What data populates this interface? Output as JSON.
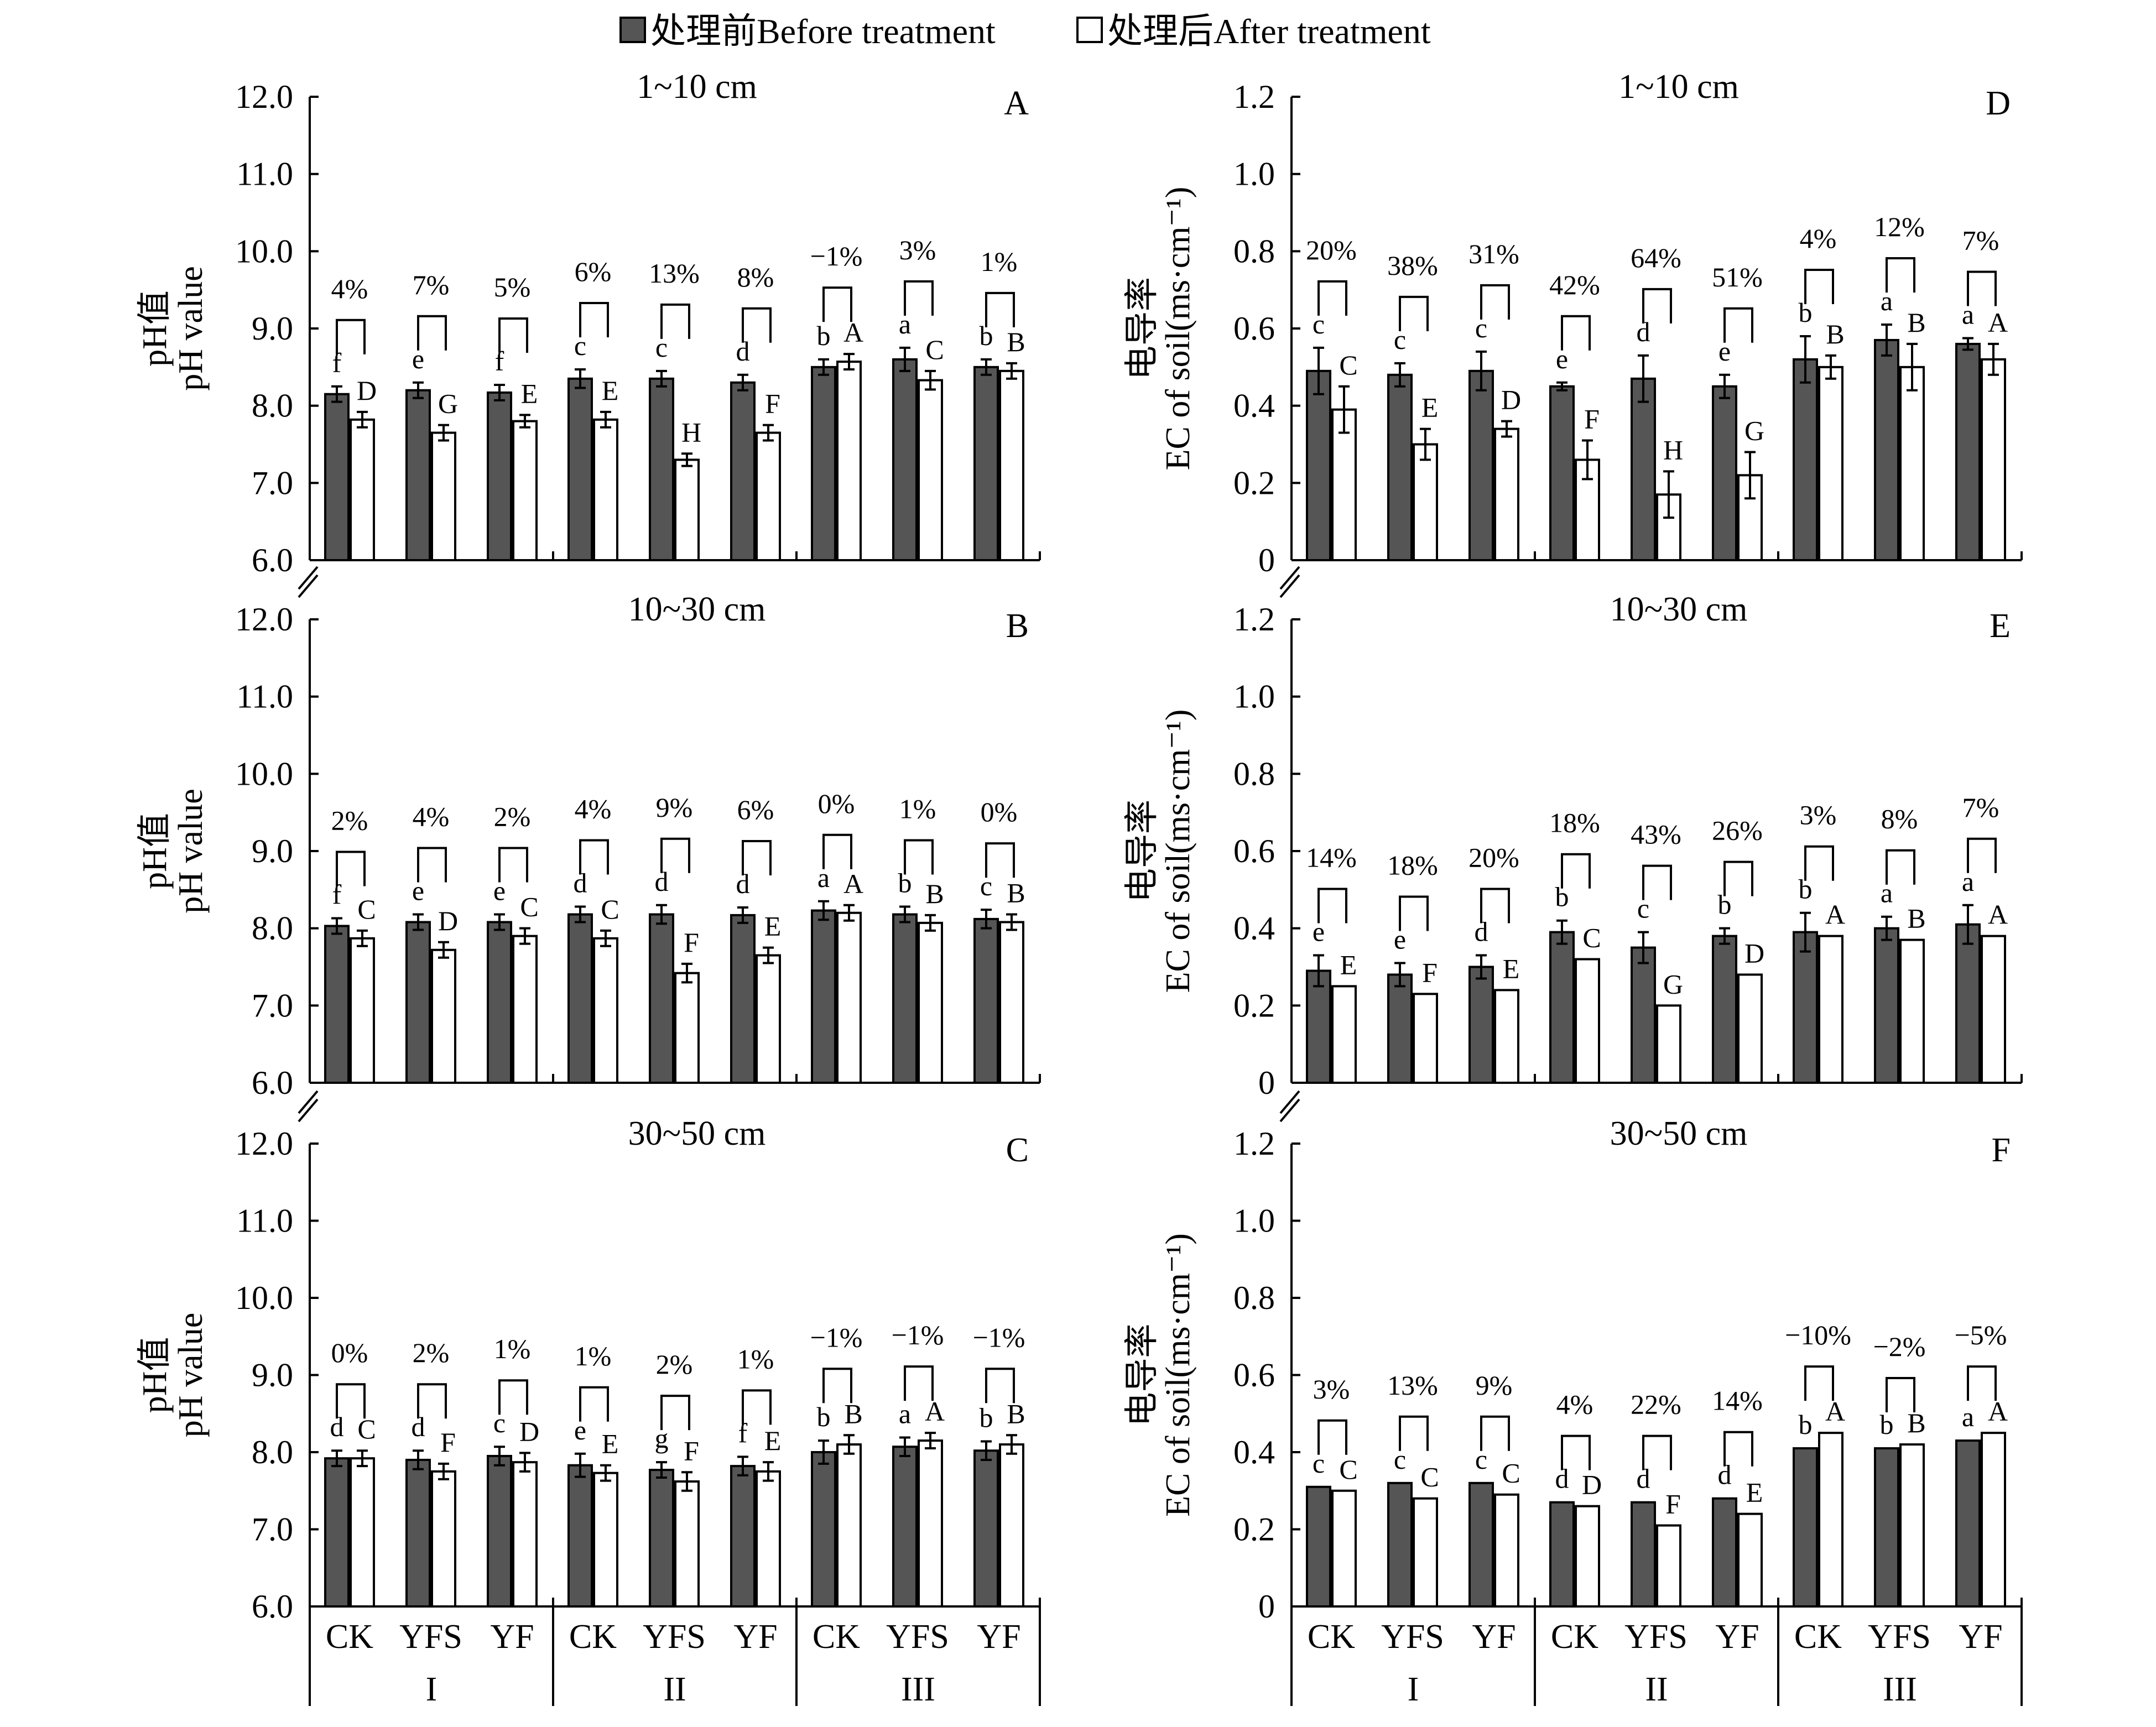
{
  "legend": [
    {
      "label": "处理前Before treatment",
      "color": "#555555"
    },
    {
      "label": "处理后After treatment",
      "color": "#ffffff"
    }
  ],
  "y_labels": {
    "ph": [
      "pH值",
      "pH value"
    ],
    "ec": [
      "电导率",
      "EC of soil(ms·cm⁻¹)"
    ]
  },
  "x_categories": [
    "CK",
    "YFS",
    "YF",
    "CK",
    "YFS",
    "YF",
    "CK",
    "YFS",
    "YF"
  ],
  "x_groups": [
    "I",
    "II",
    "III"
  ],
  "chart_data": [
    {
      "type": "bar",
      "panel": "A",
      "title": "1~10 cm",
      "ylabel": "pH值 pH value",
      "ylim": [
        6.0,
        12.0
      ],
      "yticks": [
        "6.0",
        "7.0",
        "8.0",
        "9.0",
        "10.0",
        "11.0",
        "12.0"
      ],
      "categories": [
        "CK",
        "YFS",
        "YF",
        "CK",
        "YFS",
        "YF",
        "CK",
        "YFS",
        "YF"
      ],
      "series": [
        {
          "name": "处理前Before treatment",
          "values": [
            8.15,
            8.2,
            8.17,
            8.35,
            8.35,
            8.3,
            8.5,
            8.6,
            8.5
          ],
          "errors": [
            0.1,
            0.1,
            0.1,
            0.12,
            0.1,
            0.1,
            0.1,
            0.15,
            0.1
          ],
          "letters": [
            "f",
            "e",
            "f",
            "c",
            "c",
            "d",
            "b",
            "a",
            "b"
          ]
        },
        {
          "name": "处理后After treatment",
          "values": [
            7.82,
            7.65,
            7.8,
            7.82,
            7.3,
            7.65,
            8.57,
            8.33,
            8.45
          ],
          "errors": [
            0.1,
            0.1,
            0.08,
            0.1,
            0.08,
            0.1,
            0.1,
            0.12,
            0.1
          ],
          "letters": [
            "D",
            "G",
            "E",
            "E",
            "H",
            "F",
            "A",
            "C",
            "B"
          ]
        }
      ],
      "annotations": [
        "4%",
        "7%",
        "5%",
        "6%",
        "13%",
        "8%",
        "−1%",
        "3%",
        "1%"
      ]
    },
    {
      "type": "bar",
      "panel": "B",
      "title": "10~30 cm",
      "ylabel": "pH值 pH value",
      "ylim": [
        6.0,
        12.0
      ],
      "yticks": [
        "6.0",
        "7.0",
        "8.0",
        "9.0",
        "10.0",
        "11.0",
        "12.0"
      ],
      "categories": [
        "CK",
        "YFS",
        "YF",
        "CK",
        "YFS",
        "YF",
        "CK",
        "YFS",
        "YF"
      ],
      "series": [
        {
          "name": "处理前Before treatment",
          "values": [
            8.03,
            8.08,
            8.08,
            8.18,
            8.18,
            8.17,
            8.23,
            8.18,
            8.12
          ],
          "errors": [
            0.1,
            0.1,
            0.1,
            0.1,
            0.12,
            0.1,
            0.12,
            0.1,
            0.12
          ],
          "letters": [
            "f",
            "e",
            "e",
            "d",
            "d",
            "d",
            "a",
            "b",
            "c"
          ]
        },
        {
          "name": "处理后After treatment",
          "values": [
            7.87,
            7.72,
            7.9,
            7.87,
            7.42,
            7.65,
            8.2,
            8.07,
            8.08
          ],
          "errors": [
            0.1,
            0.1,
            0.1,
            0.1,
            0.12,
            0.1,
            0.1,
            0.1,
            0.1
          ],
          "letters": [
            "C",
            "D",
            "C",
            "C",
            "F",
            "E",
            "A",
            "B",
            "B"
          ]
        }
      ],
      "annotations": [
        "2%",
        "4%",
        "2%",
        "4%",
        "9%",
        "6%",
        "0%",
        "1%",
        "0%"
      ]
    },
    {
      "type": "bar",
      "panel": "C",
      "title": "30~50 cm",
      "ylabel": "pH值 pH value",
      "ylim": [
        6.0,
        12.0
      ],
      "yticks": [
        "6.0",
        "7.0",
        "8.0",
        "9.0",
        "10.0",
        "11.0",
        "12.0"
      ],
      "categories": [
        "CK",
        "YFS",
        "YF",
        "CK",
        "YFS",
        "YF",
        "CK",
        "YFS",
        "YF"
      ],
      "series": [
        {
          "name": "处理前Before treatment",
          "values": [
            7.92,
            7.9,
            7.95,
            7.83,
            7.77,
            7.82,
            8.0,
            8.07,
            8.02
          ],
          "errors": [
            0.1,
            0.12,
            0.12,
            0.15,
            0.1,
            0.12,
            0.15,
            0.12,
            0.12
          ],
          "letters": [
            "d",
            "d",
            "c",
            "e",
            "g",
            "f",
            "b",
            "a",
            "b"
          ]
        },
        {
          "name": "处理后After treatment",
          "values": [
            7.92,
            7.75,
            7.87,
            7.73,
            7.62,
            7.75,
            8.1,
            8.15,
            8.1
          ],
          "errors": [
            0.1,
            0.1,
            0.12,
            0.1,
            0.12,
            0.12,
            0.12,
            0.1,
            0.12
          ],
          "letters": [
            "C",
            "F",
            "D",
            "E",
            "F",
            "E",
            "B",
            "A",
            "B"
          ]
        }
      ],
      "annotations": [
        "0%",
        "2%",
        "1%",
        "1%",
        "2%",
        "1%",
        "−1%",
        "−1%",
        "−1%"
      ]
    },
    {
      "type": "bar",
      "panel": "D",
      "title": "1~10 cm",
      "ylabel": "电导率 EC of soil(ms·cm⁻¹)",
      "ylim": [
        0,
        1.2
      ],
      "yticks": [
        "0",
        "0.2",
        "0.4",
        "0.6",
        "0.8",
        "1.0",
        "1.2"
      ],
      "categories": [
        "CK",
        "YFS",
        "YF",
        "CK",
        "YFS",
        "YF",
        "CK",
        "YFS",
        "YF"
      ],
      "series": [
        {
          "name": "处理前Before treatment",
          "values": [
            0.49,
            0.48,
            0.49,
            0.45,
            0.47,
            0.45,
            0.52,
            0.57,
            0.56
          ],
          "errors": [
            0.06,
            0.03,
            0.05,
            0.01,
            0.06,
            0.03,
            0.06,
            0.04,
            0.015
          ],
          "letters": [
            "c",
            "c",
            "c",
            "e",
            "d",
            "e",
            "b",
            "a",
            "a"
          ]
        },
        {
          "name": "处理后After treatment",
          "values": [
            0.39,
            0.3,
            0.34,
            0.26,
            0.17,
            0.22,
            0.5,
            0.5,
            0.52
          ],
          "errors": [
            0.06,
            0.04,
            0.02,
            0.05,
            0.06,
            0.06,
            0.03,
            0.06,
            0.04
          ],
          "letters": [
            "C",
            "E",
            "D",
            "F",
            "H",
            "G",
            "B",
            "B",
            "A"
          ]
        }
      ],
      "annotations": [
        "20%",
        "38%",
        "31%",
        "42%",
        "64%",
        "51%",
        "4%",
        "12%",
        "7%"
      ]
    },
    {
      "type": "bar",
      "panel": "E",
      "title": "10~30 cm",
      "ylabel": "电导率 EC of soil(ms·cm⁻¹)",
      "ylim": [
        0,
        1.2
      ],
      "yticks": [
        "0",
        "0.2",
        "0.4",
        "0.6",
        "0.8",
        "1.0",
        "1.2"
      ],
      "categories": [
        "CK",
        "YFS",
        "YF",
        "CK",
        "YFS",
        "YF",
        "CK",
        "YFS",
        "YF"
      ],
      "series": [
        {
          "name": "处理前Before treatment",
          "values": [
            0.29,
            0.28,
            0.3,
            0.39,
            0.35,
            0.38,
            0.39,
            0.4,
            0.41
          ],
          "errors": [
            0.04,
            0.03,
            0.03,
            0.03,
            0.04,
            0.02,
            0.05,
            0.03,
            0.05
          ],
          "letters": [
            "e",
            "e",
            "d",
            "b",
            "c",
            "b",
            "b",
            "a",
            "a"
          ]
        },
        {
          "name": "处理后After treatment",
          "values": [
            0.25,
            0.23,
            0.24,
            0.32,
            0.2,
            0.28,
            0.38,
            0.37,
            0.38
          ],
          "errors": [
            0,
            0,
            0,
            0,
            0,
            0,
            0,
            0,
            0
          ],
          "letters": [
            "E",
            "F",
            "E",
            "C",
            "G",
            "D",
            "A",
            "B",
            "A"
          ]
        }
      ],
      "annotations": [
        "14%",
        "18%",
        "20%",
        "18%",
        "43%",
        "26%",
        "3%",
        "8%",
        "7%"
      ]
    },
    {
      "type": "bar",
      "panel": "F",
      "title": "30~50 cm",
      "ylabel": "电导率 EC of soil(ms·cm⁻¹)",
      "ylim": [
        0,
        1.2
      ],
      "yticks": [
        "0",
        "0.2",
        "0.4",
        "0.6",
        "0.8",
        "1.0",
        "1.2"
      ],
      "categories": [
        "CK",
        "YFS",
        "YF",
        "CK",
        "YFS",
        "YF",
        "CK",
        "YFS",
        "YF"
      ],
      "series": [
        {
          "name": "处理前Before treatment",
          "values": [
            0.31,
            0.32,
            0.32,
            0.27,
            0.27,
            0.28,
            0.41,
            0.41,
            0.43
          ],
          "errors": [
            0,
            0,
            0,
            0,
            0,
            0,
            0,
            0,
            0
          ],
          "letters": [
            "c",
            "c",
            "c",
            "d",
            "d",
            "d",
            "b",
            "b",
            "a"
          ]
        },
        {
          "name": "处理后After treatment",
          "values": [
            0.3,
            0.28,
            0.29,
            0.26,
            0.21,
            0.24,
            0.45,
            0.42,
            0.45
          ],
          "errors": [
            0,
            0,
            0,
            0,
            0,
            0,
            0,
            0,
            0
          ],
          "letters": [
            "C",
            "C",
            "C",
            "D",
            "F",
            "E",
            "A",
            "B",
            "A"
          ]
        }
      ],
      "annotations": [
        "3%",
        "13%",
        "9%",
        "4%",
        "22%",
        "14%",
        "−10%",
        "−2%",
        "−5%"
      ]
    }
  ]
}
